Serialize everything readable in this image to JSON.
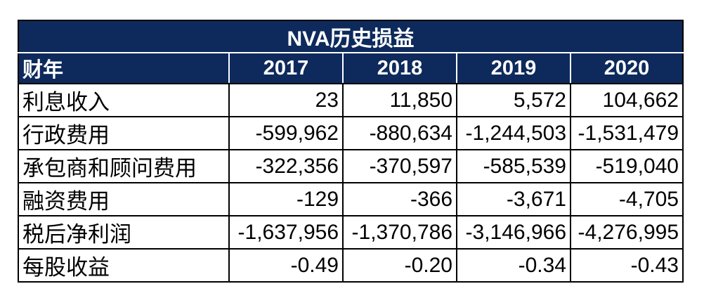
{
  "table": {
    "title": "NVA历史损益",
    "header_label": "财年",
    "years": [
      "2017",
      "2018",
      "2019",
      "2020"
    ],
    "rows": [
      {
        "label": "利息收入",
        "values": [
          "23",
          "11,850",
          "5,572",
          "104,662"
        ]
      },
      {
        "label": "行政费用",
        "values": [
          "-599,962",
          "-880,634",
          "-1,244,503",
          "-1,531,479"
        ]
      },
      {
        "label": "承包商和顾问费用",
        "values": [
          "-322,356",
          "-370,597",
          "-585,539",
          "-519,040"
        ]
      },
      {
        "label": "融资费用",
        "values": [
          "-129",
          "-366",
          "-3,671",
          "-4,705"
        ]
      },
      {
        "label": "税后净利润",
        "values": [
          "-1,637,956",
          "-1,370,786",
          "-3,146,966",
          "-4,276,995"
        ]
      },
      {
        "label": "每股收益",
        "values": [
          "-0.49",
          "-0.20",
          "-0.34",
          "-0.43"
        ]
      }
    ]
  },
  "colors": {
    "header_bg": "#0e2a5c",
    "header_text": "#ffffff",
    "border": "#000000"
  }
}
